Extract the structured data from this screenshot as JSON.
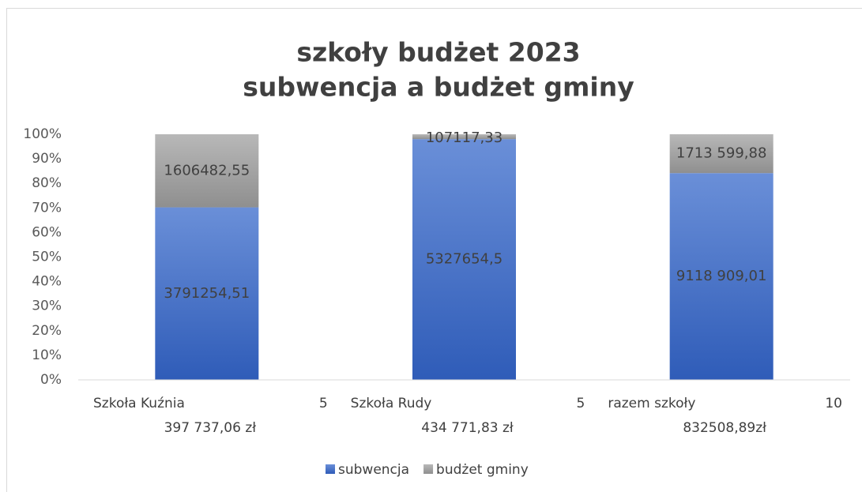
{
  "chart_data": {
    "type": "bar",
    "stacking": "percent",
    "title": [
      "szkoły budżet 2023",
      "subwencja a budżet gminy"
    ],
    "categories": [
      [
        "Szkoła Kuźnia",
        "5",
        "397 737,06 zł"
      ],
      [
        "Szkoła Rudy",
        "5",
        "434 771,83 zł"
      ],
      [
        "razem szkoły",
        "10",
        "832508,89zł"
      ]
    ],
    "series": [
      {
        "name": "subwencja",
        "color": "#4472c4",
        "values": [
          3791254.51,
          5327654.5,
          9118909.01
        ],
        "value_labels": [
          "3791254,51",
          "5327654,5",
          "9118 909,01"
        ]
      },
      {
        "name": "budżet gminy",
        "color": "#a5a5a5",
        "values": [
          1606482.55,
          107117.33,
          1713599.88
        ],
        "value_labels": [
          "1606482,55",
          "107117,33",
          "1713 599,88"
        ]
      }
    ],
    "ylim": [
      0,
      100
    ],
    "yticks": [
      {
        "value": 0,
        "label": "0%"
      },
      {
        "value": 10,
        "label": "10%"
      },
      {
        "value": 20,
        "label": "20%"
      },
      {
        "value": 30,
        "label": "30%"
      },
      {
        "value": 40,
        "label": "40%"
      },
      {
        "value": 50,
        "label": "50%"
      },
      {
        "value": 60,
        "label": "60%"
      },
      {
        "value": 70,
        "label": "70%"
      },
      {
        "value": 80,
        "label": "80%"
      },
      {
        "value": 90,
        "label": "90%"
      },
      {
        "value": 100,
        "label": "100%"
      }
    ],
    "legend": "bottom"
  }
}
